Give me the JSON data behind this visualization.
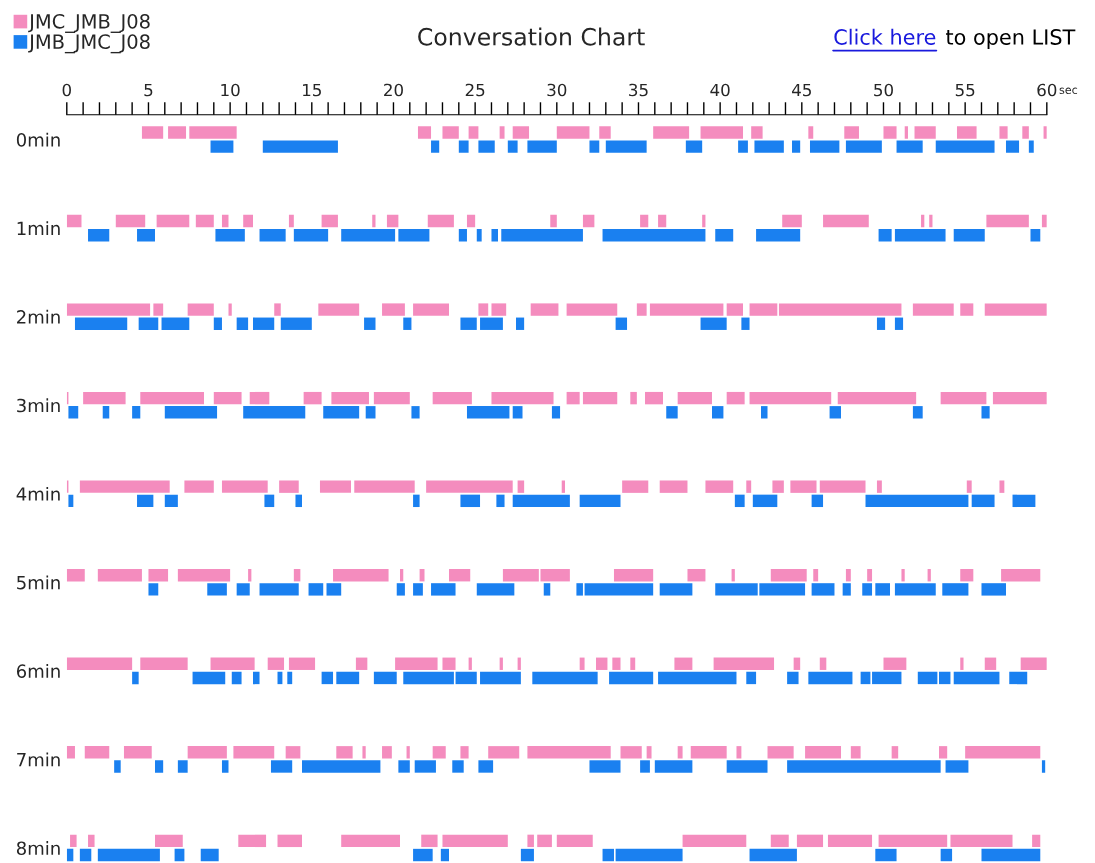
{
  "chart_data": {
    "type": "bar",
    "orientation": "horizontal",
    "title": "Conversation Chart",
    "xlabel": "sec",
    "annotations": [
      "Click here",
      "to open LIST"
    ],
    "legend": "top left",
    "categories": [
      "0min",
      "1min",
      "2min",
      "3min",
      "4min",
      "5min",
      "6min",
      "7min",
      "8min"
    ],
    "xlim": [
      0,
      60
    ],
    "xticks": [
      0,
      {
        "value": 1,
        "label": null
      },
      {
        "value": 2,
        "label": null
      },
      {
        "value": 3,
        "label": null
      },
      {
        "value": 4,
        "label": null
      },
      5,
      {
        "value": 6,
        "label": null
      },
      {
        "value": 7,
        "label": null
      },
      {
        "value": 8,
        "label": null
      },
      {
        "value": 9,
        "label": null
      },
      10,
      {
        "value": 11,
        "label": null
      },
      {
        "value": 12,
        "label": null
      },
      {
        "value": 13,
        "label": null
      },
      {
        "value": 14,
        "label": null
      },
      15,
      {
        "value": 16,
        "label": null
      },
      {
        "value": 17,
        "label": null
      },
      {
        "value": 18,
        "label": null
      },
      {
        "value": 19,
        "label": null
      },
      20,
      {
        "value": 21,
        "label": null
      },
      {
        "value": 22,
        "label": null
      },
      {
        "value": 23,
        "label": null
      },
      {
        "value": 24,
        "label": null
      },
      25,
      {
        "value": 26,
        "label": null
      },
      {
        "value": 27,
        "label": null
      },
      {
        "value": 28,
        "label": null
      },
      {
        "value": 29,
        "label": null
      },
      30,
      {
        "value": 31,
        "label": null
      },
      {
        "value": 32,
        "label": null
      },
      {
        "value": 33,
        "label": null
      },
      {
        "value": 34,
        "label": null
      },
      35,
      {
        "value": 36,
        "label": null
      },
      {
        "value": 37,
        "label": null
      },
      {
        "value": 38,
        "label": null
      },
      {
        "value": 39,
        "label": null
      },
      40,
      {
        "value": 41,
        "label": null
      },
      {
        "value": 42,
        "label": null
      },
      {
        "value": 43,
        "label": null
      },
      {
        "value": 44,
        "label": null
      },
      45,
      {
        "value": 46,
        "label": null
      },
      {
        "value": 47,
        "label": null
      },
      {
        "value": 48,
        "label": null
      },
      {
        "value": 49,
        "label": null
      },
      50,
      {
        "value": 51,
        "label": null
      },
      {
        "value": 52,
        "label": null
      },
      {
        "value": 53,
        "label": null
      },
      {
        "value": 54,
        "label": null
      },
      55,
      {
        "value": 56,
        "label": null
      },
      {
        "value": 57,
        "label": null
      },
      {
        "value": 58,
        "label": null
      },
      {
        "value": 59,
        "label": null
      },
      60
    ],
    "series": [
      {
        "name": "JMC_JMB_J08",
        "color": "#f48cbe",
        "base": [
          4.6,
          0,
          0,
          0,
          0,
          0,
          0,
          0,
          0.2
        ],
        "values": [
          1.3,
          0.9,
          5.1,
          0.1,
          0.1,
          1.1,
          4.0,
          0.5,
          0.4
        ]
      },
      {
        "color": "#f48cbe",
        "base": [
          6.2,
          3.0,
          5.3,
          1.0,
          0.8,
          1.9,
          4.5,
          1.1,
          1.3
        ],
        "values": [
          1.1,
          1.8,
          0.6,
          2.6,
          5.5,
          2.7,
          2.9,
          1.5,
          0.4
        ]
      },
      {
        "color": "#f48cbe",
        "base": [
          7.5,
          5.5,
          7.4,
          4.5,
          7.2,
          5.0,
          8.8,
          3.5,
          5.4
        ],
        "values": [
          2.9,
          2.0,
          1.6,
          3.9,
          1.8,
          1.2,
          2.7,
          1.7,
          1.7
        ]
      },
      {
        "color": "#f48cbe",
        "base": [
          21.5,
          7.9,
          9.9,
          9.0,
          9.5,
          6.8,
          12.3,
          7.4,
          10.5
        ],
        "values": [
          0.8,
          1.1,
          0.2,
          1.7,
          2.8,
          3.2,
          1.0,
          2.4,
          1.7
        ]
      },
      {
        "color": "#f48cbe",
        "base": [
          23.0,
          9.5,
          12.7,
          11.2,
          13.0,
          11.1,
          13.6,
          10.2,
          12.9
        ],
        "values": [
          1.0,
          0.4,
          0.4,
          1.2,
          1.2,
          0.2,
          1.6,
          2.5,
          1.5
        ]
      },
      {
        "color": "#f48cbe",
        "base": [
          24.6,
          10.8,
          15.4,
          14.5,
          15.5,
          13.9,
          17.7,
          13.4,
          16.8
        ],
        "values": [
          0.6,
          0.6,
          2.5,
          1.1,
          1.9,
          0.4,
          0.7,
          0.9,
          3.6
        ]
      },
      {
        "color": "#f48cbe",
        "base": [
          26.5,
          13.6,
          19.3,
          16.2,
          17.6,
          16.3,
          20.1,
          16.5,
          21.7
        ],
        "values": [
          0.3,
          0.3,
          1.4,
          2.3,
          3.7,
          3.4,
          2.6,
          1.0,
          1.0
        ]
      },
      {
        "color": "#f48cbe",
        "base": [
          27.3,
          15.6,
          21.2,
          18.8,
          22.0,
          20.4,
          23.0,
          18.1,
          23.0
        ],
        "values": [
          1.0,
          1.0,
          2.2,
          2.2,
          5.3,
          0.2,
          0.8,
          0.2,
          4.0
        ]
      },
      {
        "color": "#f48cbe",
        "base": [
          30.0,
          18.7,
          25.2,
          22.4,
          27.6,
          21.6,
          24.6,
          19.3,
          28.2
        ],
        "values": [
          2.0,
          0.2,
          0.6,
          2.4,
          0.4,
          0.3,
          0.2,
          0.6,
          0.4
        ]
      },
      {
        "color": "#f48cbe",
        "base": [
          32.6,
          19.6,
          26.0,
          26.0,
          30.3,
          23.4,
          26.5,
          20.8,
          28.8
        ],
        "values": [
          0.7,
          0.7,
          0.9,
          3.8,
          0.2,
          1.3,
          0.2,
          0.2,
          0.9
        ]
      },
      {
        "color": "#f48cbe",
        "base": [
          35.9,
          22.1,
          28.4,
          30.6,
          34.0,
          26.7,
          27.6,
          22.4,
          30.0
        ],
        "values": [
          2.2,
          1.6,
          1.7,
          0.8,
          1.6,
          2.2,
          0.2,
          0.8,
          2.2
        ]
      },
      {
        "color": "#f48cbe",
        "base": [
          38.8,
          24.5,
          30.6,
          31.6,
          36.3,
          29.0,
          31.4,
          24.1,
          37.7
        ],
        "values": [
          2.6,
          0.5,
          3.1,
          2.1,
          1.7,
          1.8,
          0.3,
          0.5,
          3.9
        ]
      },
      {
        "color": "#f48cbe",
        "base": [
          41.9,
          29.6,
          34.9,
          34.5,
          39.1,
          33.5,
          32.4,
          25.8,
          43.1
        ],
        "values": [
          0.7,
          0.4,
          0.6,
          0.4,
          1.7,
          2.4,
          0.7,
          1.9,
          1.1
        ]
      },
      {
        "color": "#f48cbe",
        "base": [
          45.4,
          31.6,
          35.7,
          35.4,
          41.6,
          38.0,
          33.4,
          28.2,
          44.7
        ],
        "values": [
          0.3,
          0.7,
          4.5,
          1.1,
          0.3,
          1.1,
          0.5,
          5.1,
          1.6
        ]
      },
      {
        "color": "#f48cbe",
        "base": [
          47.6,
          35.1,
          40.4,
          37.4,
          43.2,
          40.7,
          34.5,
          33.9,
          46.6
        ],
        "values": [
          0.9,
          0.5,
          1.0,
          2.1,
          0.7,
          0.2,
          0.3,
          1.3,
          2.7
        ]
      },
      {
        "color": "#f48cbe",
        "base": [
          50.0,
          36.2,
          41.8,
          40.4,
          44.3,
          43.1,
          37.2,
          35.5,
          49.7
        ],
        "values": [
          0.8,
          0.5,
          1.7,
          1.1,
          1.6,
          2.2,
          1.1,
          0.3,
          4.2
        ]
      },
      {
        "color": "#f48cbe",
        "base": [
          51.3,
          38.9,
          43.6,
          41.8,
          46.1,
          45.7,
          39.6,
          37.4,
          54.1
        ],
        "values": [
          0.2,
          0.2,
          7.5,
          5.0,
          2.8,
          0.3,
          3.7,
          0.3,
          3.8
        ]
      },
      {
        "color": "#f48cbe",
        "base": [
          51.9,
          43.8,
          51.8,
          47.2,
          49.6,
          47.7,
          44.5,
          38.2,
          59.1
        ],
        "values": [
          1.3,
          1.2,
          2.5,
          4.8,
          0.3,
          0.3,
          0.4,
          2.2,
          0.5
        ]
      },
      {
        "color": "#f48cbe",
        "base": [
          54.5,
          46.3,
          54.7,
          53.5,
          55.1,
          49.0,
          46.1,
          41.0,
          null
        ],
        "values": [
          1.2,
          2.8,
          0.8,
          2.8,
          0.3,
          0.3,
          0.4,
          0.3,
          null
        ]
      },
      {
        "color": "#f48cbe",
        "base": [
          57.1,
          52.3,
          56.2,
          56.7,
          57.1,
          51.1,
          50.0,
          42.9,
          null
        ],
        "values": [
          0.5,
          0.2,
          3.8,
          3.3,
          0.3,
          0.2,
          1.4,
          1.6,
          null
        ]
      },
      {
        "color": "#f48cbe",
        "base": [
          58.5,
          52.8,
          null,
          null,
          null,
          52.7,
          54.7,
          45.2,
          null
        ],
        "values": [
          0.4,
          0.2,
          null,
          null,
          null,
          0.2,
          0.2,
          2.2,
          null
        ]
      },
      {
        "color": "#f48cbe",
        "base": [
          59.8,
          56.3,
          null,
          null,
          null,
          54.7,
          56.2,
          48.0,
          null
        ],
        "values": [
          0.2,
          2.6,
          null,
          null,
          null,
          0.8,
          0.7,
          0.6,
          null
        ]
      },
      {
        "color": "#f48cbe",
        "base": [
          null,
          59.7,
          null,
          null,
          null,
          57.2,
          58.4,
          50.5,
          null
        ],
        "values": [
          null,
          0.3,
          null,
          null,
          null,
          2.4,
          1.6,
          0.4,
          null
        ]
      },
      {
        "color": "#f48cbe",
        "base": [
          null,
          null,
          null,
          null,
          null,
          null,
          null,
          53.4,
          null
        ],
        "values": [
          null,
          null,
          null,
          null,
          null,
          null,
          null,
          0.5,
          null
        ]
      },
      {
        "color": "#f48cbe",
        "base": [
          null,
          null,
          null,
          null,
          null,
          null,
          null,
          55.0,
          null
        ],
        "values": [
          null,
          null,
          null,
          null,
          null,
          null,
          null,
          4.6,
          null
        ]
      },
      {
        "name": "JMB_JMC_J08",
        "color": "#1a80f0",
        "base": [
          8.8,
          1.3,
          0.5,
          0.1,
          0.1,
          5.0,
          4.0,
          2.9,
          0
        ],
        "values": [
          1.4,
          1.3,
          3.2,
          0.6,
          0.3,
          0.6,
          0.4,
          0.4,
          0.4
        ]
      },
      {
        "color": "#1a80f0",
        "base": [
          12.0,
          4.3,
          4.4,
          2.2,
          4.3,
          8.6,
          7.7,
          5.4,
          0.8
        ],
        "values": [
          4.6,
          1.1,
          1.2,
          0.4,
          1.0,
          1.2,
          2.0,
          0.5,
          0.7
        ]
      },
      {
        "color": "#1a80f0",
        "base": [
          22.3,
          9.1,
          5.8,
          4.0,
          6.0,
          10.4,
          10.1,
          6.8,
          1.9
        ],
        "values": [
          0.5,
          1.8,
          1.7,
          0.5,
          0.8,
          0.8,
          0.6,
          0.6,
          3.8
        ]
      },
      {
        "color": "#1a80f0",
        "base": [
          24.0,
          11.8,
          9.0,
          6.0,
          12.1,
          11.8,
          11.4,
          9.5,
          6.6
        ],
        "values": [
          0.6,
          1.6,
          0.5,
          3.2,
          0.6,
          2.4,
          0.4,
          0.4,
          0.6
        ]
      },
      {
        "color": "#1a80f0",
        "base": [
          25.2,
          13.9,
          10.4,
          10.8,
          14.0,
          14.8,
          12.9,
          12.5,
          8.2
        ],
        "values": [
          1.0,
          2.1,
          0.7,
          3.8,
          0.4,
          0.9,
          0.3,
          1.3,
          1.1
        ]
      },
      {
        "color": "#1a80f0",
        "base": [
          27.0,
          16.8,
          11.4,
          15.7,
          21.2,
          15.9,
          13.5,
          14.4,
          21.2
        ],
        "values": [
          0.6,
          3.3,
          1.3,
          2.2,
          0.4,
          0.9,
          0.3,
          4.8,
          1.2
        ]
      },
      {
        "color": "#1a80f0",
        "base": [
          28.2,
          20.3,
          13.1,
          18.3,
          24.1,
          20.2,
          15.6,
          20.3,
          22.9
        ],
        "values": [
          1.8,
          1.9,
          1.9,
          0.6,
          1.2,
          0.5,
          0.7,
          0.7,
          0.5
        ]
      },
      {
        "color": "#1a80f0",
        "base": [
          32.0,
          24.0,
          18.2,
          21.1,
          26.3,
          21.2,
          16.5,
          21.3,
          27.8
        ],
        "values": [
          0.6,
          0.5,
          0.7,
          0.5,
          0.5,
          0.6,
          1.4,
          1.3,
          0.8
        ]
      },
      {
        "color": "#1a80f0",
        "base": [
          33.0,
          25.1,
          20.6,
          24.5,
          27.3,
          22.3,
          18.8,
          23.6,
          32.8
        ],
        "values": [
          2.5,
          0.3,
          0.5,
          2.6,
          3.5,
          1.5,
          1.4,
          0.7,
          0.7
        ]
      },
      {
        "color": "#1a80f0",
        "base": [
          37.9,
          26.0,
          24.1,
          27.3,
          31.4,
          25.1,
          20.6,
          25.2,
          33.6
        ],
        "values": [
          1.0,
          0.4,
          1.0,
          0.6,
          2.5,
          2.3,
          3.1,
          0.9,
          4.1
        ]
      },
      {
        "color": "#1a80f0",
        "base": [
          41.1,
          26.6,
          25.3,
          29.7,
          40.9,
          29.2,
          23.8,
          32.0,
          41.8
        ],
        "values": [
          0.6,
          5.0,
          1.4,
          0.5,
          0.6,
          0.4,
          1.3,
          1.9,
          2.9
        ]
      },
      {
        "color": "#1a80f0",
        "base": [
          42.1,
          32.8,
          27.5,
          36.7,
          42.0,
          31.2,
          25.3,
          35.1,
          49.5
        ],
        "values": [
          1.8,
          6.3,
          0.5,
          0.7,
          1.5,
          0.4,
          2.5,
          0.6,
          1.3
        ]
      },
      {
        "color": "#1a80f0",
        "base": [
          44.4,
          39.7,
          33.6,
          39.5,
          45.6,
          31.7,
          28.5,
          36.0,
          53.5
        ],
        "values": [
          0.5,
          1.1,
          0.7,
          0.7,
          0.7,
          4.2,
          4.0,
          2.3,
          0.7
        ]
      },
      {
        "color": "#1a80f0",
        "base": [
          45.5,
          42.2,
          38.8,
          42.5,
          48.9,
          36.3,
          33.2,
          40.4,
          56.0
        ],
        "values": [
          1.8,
          2.7,
          1.6,
          0.4,
          6.3,
          2.0,
          2.7,
          2.5,
          3.6
        ]
      },
      {
        "color": "#1a80f0",
        "base": [
          47.7,
          49.7,
          41.3,
          46.7,
          55.4,
          39.7,
          36.2,
          44.1,
          null
        ],
        "values": [
          2.2,
          0.8,
          0.5,
          0.7,
          1.4,
          2.6,
          4.8,
          9.4,
          null
        ]
      },
      {
        "color": "#1a80f0",
        "base": [
          50.8,
          50.7,
          49.6,
          51.8,
          57.9,
          42.4,
          41.6,
          53.8,
          null
        ],
        "values": [
          1.6,
          3.1,
          0.5,
          0.6,
          1.4,
          2.8,
          0.6,
          1.4,
          null
        ]
      },
      {
        "color": "#1a80f0",
        "base": [
          53.2,
          54.3,
          50.7,
          56.0,
          null,
          45.6,
          44.1,
          59.7,
          null
        ],
        "values": [
          3.6,
          1.9,
          0.5,
          0.5,
          null,
          1.4,
          0.7,
          0.2,
          null
        ]
      },
      {
        "color": "#1a80f0",
        "base": [
          57.5,
          59.0,
          null,
          null,
          null,
          47.5,
          45.4,
          null,
          null
        ],
        "values": [
          0.8,
          0.6,
          null,
          null,
          null,
          0.5,
          2.7,
          null,
          null
        ]
      },
      {
        "color": "#1a80f0",
        "base": [
          58.9,
          null,
          null,
          null,
          null,
          48.7,
          48.6,
          null,
          null
        ],
        "values": [
          0.3,
          null,
          null,
          null,
          null,
          0.6,
          0.6,
          null,
          null
        ]
      },
      {
        "color": "#1a80f0",
        "base": [
          null,
          null,
          null,
          null,
          null,
          49.5,
          49.3,
          null,
          null
        ],
        "values": [
          null,
          null,
          null,
          null,
          null,
          0.9,
          1.8,
          null,
          null
        ]
      },
      {
        "color": "#1a80f0",
        "base": [
          null,
          null,
          null,
          null,
          null,
          50.7,
          52.1,
          null,
          null
        ],
        "values": [
          null,
          null,
          null,
          null,
          null,
          2.5,
          1.2,
          null,
          null
        ]
      },
      {
        "color": "#1a80f0",
        "base": [
          null,
          null,
          null,
          null,
          null,
          53.6,
          53.4,
          null,
          null
        ],
        "values": [
          null,
          null,
          null,
          null,
          null,
          1.6,
          0.7,
          null,
          null
        ]
      },
      {
        "color": "#1a80f0",
        "base": [
          null,
          null,
          null,
          null,
          null,
          56.0,
          54.3,
          null,
          null
        ],
        "values": [
          null,
          null,
          null,
          null,
          null,
          1.5,
          2.8,
          null,
          null
        ]
      },
      {
        "color": "#1a80f0",
        "base": [
          null,
          null,
          null,
          null,
          null,
          null,
          57.7,
          null,
          null
        ],
        "values": [
          null,
          null,
          null,
          null,
          null,
          null,
          1.1,
          null,
          null
        ]
      }
    ]
  }
}
